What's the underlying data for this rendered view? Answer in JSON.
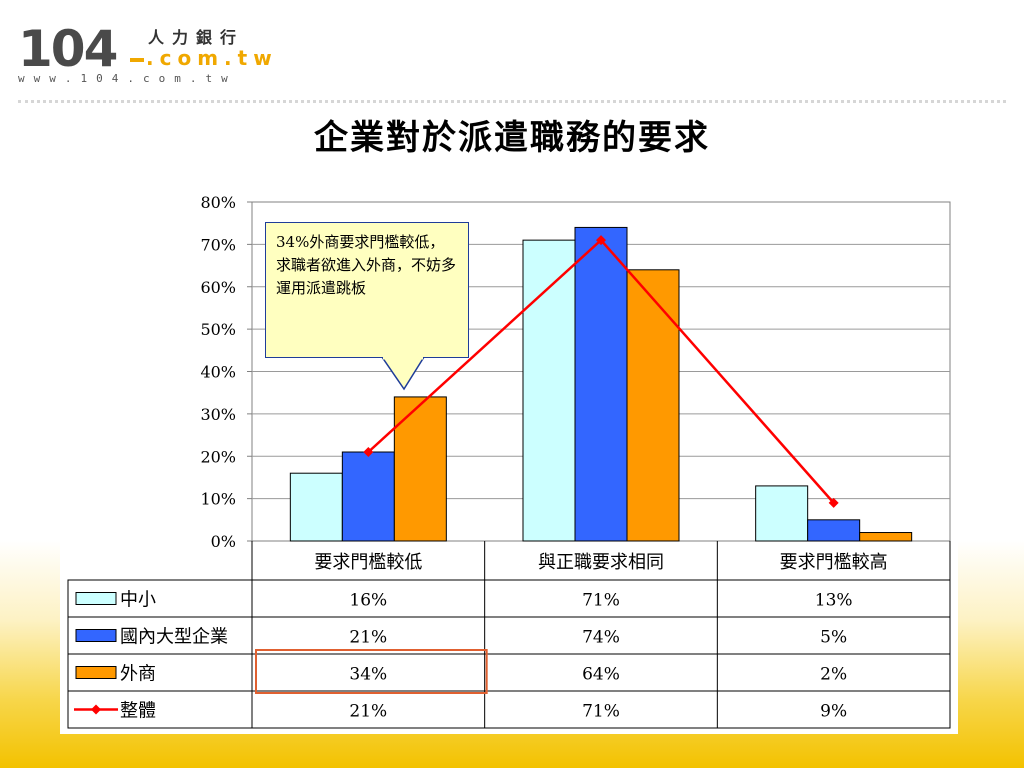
{
  "logo": {
    "number": "104",
    "chinese": "人力銀行",
    "domain": ".com.tw",
    "url": "www.104.com.tw"
  },
  "slide_title": "企業對於派遣職務的要求",
  "callout_text": "34%外商要求門檻較低，求職者欲進入外商，不妨多運用派遣跳板",
  "chart_data": {
    "type": "bar",
    "title": "",
    "xlabel": "",
    "ylabel": "",
    "ylim": [
      0,
      80
    ],
    "yticks": [
      "0%",
      "10%",
      "20%",
      "30%",
      "40%",
      "50%",
      "60%",
      "70%",
      "80%"
    ],
    "grid": true,
    "legend": "data-table",
    "categories": [
      "要求門檻較低",
      "與正職要求相同",
      "要求門檻較高"
    ],
    "series": [
      {
        "name": "中小",
        "type": "bar",
        "color": "#ccffff",
        "values": [
          16,
          71,
          13
        ],
        "labels": [
          "16%",
          "71%",
          "13%"
        ]
      },
      {
        "name": "國內大型企業",
        "type": "bar",
        "color": "#3366ff",
        "values": [
          21,
          74,
          5
        ],
        "labels": [
          "21%",
          "74%",
          "5%"
        ]
      },
      {
        "name": "外商",
        "type": "bar",
        "color": "#ff9900",
        "values": [
          34,
          64,
          2
        ],
        "labels": [
          "34%",
          "64%",
          "2%"
        ]
      },
      {
        "name": "整體",
        "type": "line",
        "color": "#ff0000",
        "values": [
          21,
          71,
          9
        ],
        "labels": [
          "21%",
          "71%",
          "9%"
        ]
      }
    ],
    "highlight": {
      "series": "外商",
      "category": "要求門檻較低",
      "color": "#e06030"
    }
  }
}
